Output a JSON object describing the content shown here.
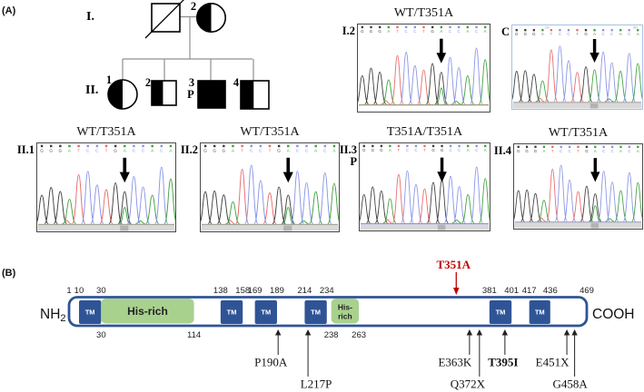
{
  "colors": {
    "domain_blue": "#2f5496",
    "his_green": "#a9d18e",
    "variant_red": "#c00000",
    "control_border": "#a4c2e4",
    "trace_border": "#4a4a4a",
    "pedigree_line": "#909090",
    "strip_gray": "#d9d9d9",
    "strip_dark": "#b3b3b3"
  },
  "panel_a": {
    "label": "(A)",
    "pedigree": {
      "generation_labels": [
        "I.",
        "II."
      ],
      "members": [
        {
          "id": "I.1",
          "symbol": "square",
          "fill": "none",
          "deceased": true,
          "number": ""
        },
        {
          "id": "I.2",
          "symbol": "circle",
          "fill": "half",
          "deceased": false,
          "number": "2"
        },
        {
          "id": "II.1",
          "symbol": "circle",
          "fill": "half",
          "deceased": false,
          "number": "1"
        },
        {
          "id": "II.2",
          "symbol": "square",
          "fill": "half",
          "deceased": false,
          "number": "2"
        },
        {
          "id": "II.3",
          "symbol": "square",
          "fill": "full",
          "deceased": false,
          "number": "3",
          "proband_mark": "P"
        },
        {
          "id": "II.4",
          "symbol": "square",
          "fill": "half",
          "deceased": false,
          "number": "4"
        }
      ]
    },
    "chromatograms": {
      "base_colors": {
        "A": "#3fa33f",
        "C": "#8a94e6",
        "G": "#3f3f3f",
        "T": "#e86a6a"
      },
      "sequence": "GGGATCCTGACCACA",
      "variant_index": 9,
      "cards": [
        {
          "id": "I.2",
          "genotype": "WT/T351A",
          "alleles": "het"
        },
        {
          "id": "C",
          "genotype": "",
          "alleles": "wt",
          "ruler_marks": [
            "230",
            "260"
          ]
        },
        {
          "id": "II.1",
          "genotype": "WT/T351A",
          "alleles": "het"
        },
        {
          "id": "II.2",
          "genotype": "WT/T351A",
          "alleles": "het"
        },
        {
          "id": "II.3",
          "genotype": "T351A/T351A",
          "alleles": "hom",
          "proband_mark": "P"
        },
        {
          "id": "II.4",
          "genotype": "WT/T351A",
          "alleles": "het"
        }
      ]
    }
  },
  "panel_b": {
    "label": "(B)",
    "protein": {
      "n_terminus": "NH",
      "n_terminus_sub": "2",
      "c_terminus": "COOH",
      "length": 469,
      "top_ticks": [
        1,
        10,
        30,
        138,
        158,
        169,
        189,
        214,
        234,
        381,
        401,
        417,
        436,
        469
      ],
      "bottom_ticks": [
        30,
        114,
        238,
        263
      ],
      "tm_label": "TM",
      "segments": [
        {
          "type": "tm",
          "start": 10,
          "end": 30
        },
        {
          "type": "his",
          "start": 30,
          "end": 114,
          "label_lines": [
            "His-rich"
          ]
        },
        {
          "type": "tm",
          "start": 138,
          "end": 158
        },
        {
          "type": "tm",
          "start": 169,
          "end": 189
        },
        {
          "type": "tm",
          "start": 214,
          "end": 234
        },
        {
          "type": "his",
          "start": 238,
          "end": 263,
          "label_lines": [
            "His-",
            "rich"
          ]
        },
        {
          "type": "tm",
          "start": 381,
          "end": 401
        },
        {
          "type": "tm",
          "start": 417,
          "end": 436
        }
      ],
      "highlight_variant": {
        "label": "T351A",
        "residue": 351
      },
      "mutations": [
        {
          "label": "P190A",
          "residue": 190,
          "tier": 1,
          "bold": false
        },
        {
          "label": "L217P",
          "residue": 217,
          "tier": 2,
          "bold": false
        },
        {
          "label": "E363K",
          "residue": 363,
          "tier": 1,
          "bold": false
        },
        {
          "label": "Q372X",
          "residue": 372,
          "tier": 2,
          "bold": false
        },
        {
          "label": "T395I",
          "residue": 395,
          "tier": 1,
          "bold": true
        },
        {
          "label": "E451X",
          "residue": 451,
          "tier": 1,
          "bold": false
        },
        {
          "label": "G458A",
          "residue": 458,
          "tier": 2,
          "bold": false
        }
      ]
    }
  }
}
